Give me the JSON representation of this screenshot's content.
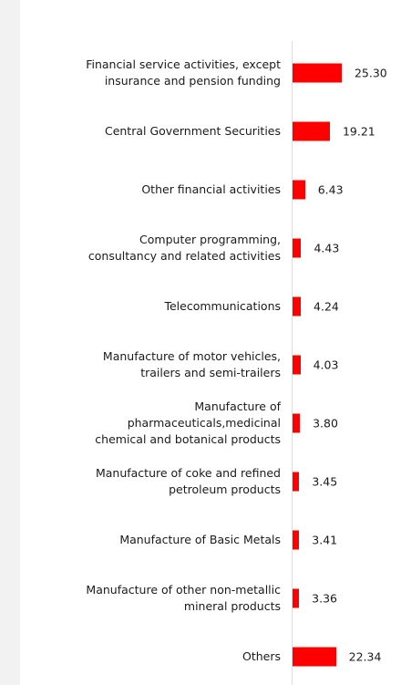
{
  "chart_data": {
    "type": "bar",
    "orientation": "horizontal",
    "color": "#ff0000",
    "categories": [
      "Financial service activities, except\ninsurance and pension funding",
      "Central Government Securities",
      "Other financial activities",
      "Computer programming,\nconsultancy and related activities",
      "Telecommunications",
      "Manufacture of motor vehicles,\ntrailers and semi-trailers",
      "Manufacture of\npharmaceuticals,medicinal\nchemical and botanical products",
      "Manufacture of coke and refined\npetroleum products",
      "Manufacture of Basic Metals",
      "Manufacture of other non-metallic\nmineral products",
      "Others"
    ],
    "values": [
      25.3,
      19.21,
      6.43,
      4.43,
      4.24,
      4.03,
      3.8,
      3.45,
      3.41,
      3.36,
      22.34
    ],
    "value_labels": [
      "25.30",
      "19.21",
      "6.43",
      "4.43",
      "4.24",
      "4.03",
      "3.80",
      "3.45",
      "3.41",
      "3.36",
      "22.34"
    ],
    "xlim": [
      0,
      30
    ]
  }
}
